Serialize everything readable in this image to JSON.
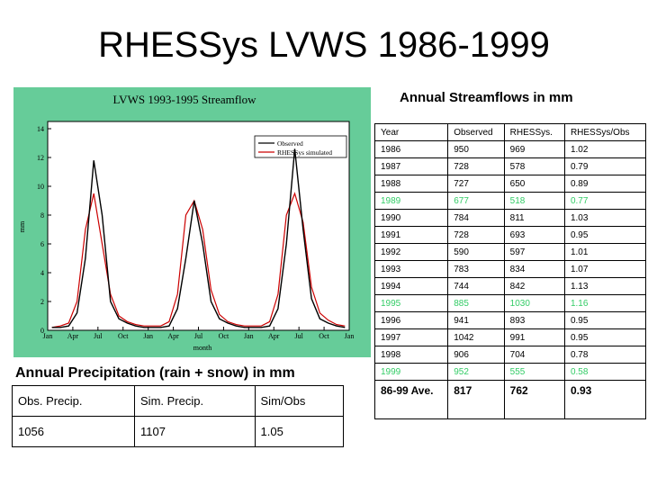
{
  "slide_title": "RHESSys LVWS 1986-1999",
  "annual_streamflows": {
    "title": "Annual Streamflows in mm",
    "headers": [
      "Year",
      "Observed",
      "RHESSys.",
      "RHESSys/Obs"
    ],
    "rows": [
      [
        "1986",
        "950",
        "969",
        "1.02"
      ],
      [
        "1987",
        "728",
        "578",
        "0.79"
      ],
      [
        "1988",
        "727",
        "650",
        "0.89"
      ],
      [
        "1989",
        "677",
        "518",
        "0.77"
      ],
      [
        "1990",
        "784",
        "811",
        "1.03"
      ],
      [
        "1991",
        "728",
        "693",
        "0.95"
      ],
      [
        "1992",
        "590",
        "597",
        "1.01"
      ],
      [
        "1993",
        "783",
        "834",
        "1.07"
      ],
      [
        "1994",
        "744",
        "842",
        "1.13"
      ],
      [
        "1995",
        "885",
        "1030",
        "1.16"
      ],
      [
        "1996",
        "941",
        "893",
        "0.95"
      ],
      [
        "1997",
        "1042",
        "991",
        "0.95"
      ],
      [
        "1998",
        "906",
        "704",
        "0.78"
      ],
      [
        "1999",
        "952",
        "555",
        "0.58"
      ]
    ],
    "highlight_rows": [
      "1989",
      "1995",
      "1999"
    ],
    "average": [
      "86-99 Ave.",
      "817",
      "762",
      "0.93"
    ],
    "highlight_color": "#33cc66"
  },
  "annual_precipitation": {
    "title": "Annual Precipitation (rain + snow) in mm",
    "headers": [
      "Obs. Precip.",
      "Sim. Precip.",
      "Sim/Obs"
    ],
    "values": [
      "1056",
      "1107",
      "1.05"
    ]
  },
  "chart_data": {
    "type": "line",
    "title": "LVWS 1993-1995 Streamflow",
    "xlabel": "month",
    "ylabel": "mm",
    "x_tick_labels": [
      "Jan",
      "Apr",
      "Jul",
      "Oct",
      "Jan",
      "Apr",
      "Jul",
      "Oct",
      "Jan",
      "Apr",
      "Jul",
      "Oct",
      "Jan"
    ],
    "y_ticks": [
      0,
      2,
      4,
      6,
      8,
      10,
      12,
      14
    ],
    "ylim": [
      0,
      14.5
    ],
    "x_range_months": [
      0,
      36
    ],
    "legend": "top-right",
    "series": [
      {
        "name": "Observed",
        "color": "#000000",
        "values_monthly": [
          0.2,
          0.2,
          0.3,
          1.2,
          5.0,
          11.8,
          8.0,
          2.0,
          0.8,
          0.5,
          0.3,
          0.2,
          0.2,
          0.2,
          0.3,
          1.5,
          5.0,
          9.0,
          6.0,
          2.0,
          0.8,
          0.5,
          0.3,
          0.2,
          0.2,
          0.2,
          0.3,
          1.5,
          6.0,
          12.6,
          7.0,
          2.2,
          0.8,
          0.5,
          0.3,
          0.2
        ]
      },
      {
        "name": "RHESSys simulated",
        "color": "#cc0000",
        "values_monthly": [
          0.2,
          0.3,
          0.5,
          2.0,
          7.0,
          9.5,
          6.0,
          2.5,
          1.0,
          0.6,
          0.4,
          0.3,
          0.3,
          0.3,
          0.6,
          2.5,
          8.0,
          9.0,
          7.0,
          2.8,
          1.1,
          0.6,
          0.4,
          0.3,
          0.3,
          0.3,
          0.6,
          2.5,
          8.0,
          9.5,
          7.5,
          3.0,
          1.2,
          0.7,
          0.4,
          0.3
        ]
      }
    ]
  }
}
